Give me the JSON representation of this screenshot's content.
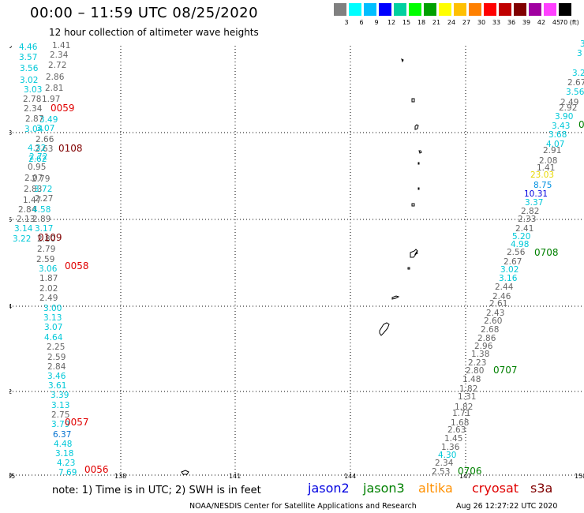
{
  "title": "00:00 – 11:59 UTC 08/25/2020",
  "subtitle": "12 hour collection of altimeter wave heights",
  "scale": {
    "colors": [
      "#808080",
      "#00ffff",
      "#00bfff",
      "#0000ff",
      "#00d0a0",
      "#00ff00",
      "#00a000",
      "#ffff00",
      "#ffc000",
      "#ff8000",
      "#ff0000",
      "#c00000",
      "#800000",
      "#a000a0",
      "#ff40ff",
      "#000000"
    ],
    "labels": [
      "3",
      "6",
      "9",
      "12",
      "15",
      "18",
      "21",
      "24",
      "27",
      "30",
      "33",
      "36",
      "39",
      "42",
      "45",
      "70 (ft)"
    ]
  },
  "axes": {
    "lat_labels": [
      "20",
      "18",
      "16",
      "14",
      "12",
      "10"
    ],
    "lon_labels": [
      "135",
      "138",
      "141",
      "144",
      "147",
      "150"
    ]
  },
  "swh_left": [
    {
      "v": "1.41",
      "c": "#666"
    },
    {
      "v": "2.34",
      "c": "#666"
    },
    {
      "v": "4.46",
      "c": "#00c8d8"
    },
    {
      "v": "3.57",
      "c": "#00c8d8"
    },
    {
      "v": "2.72",
      "c": "#666"
    },
    {
      "v": "3.56",
      "c": "#00c8d8"
    },
    {
      "v": "2.86",
      "c": "#666"
    },
    {
      "v": "3.02",
      "c": "#00c8d8"
    },
    {
      "v": "2.81",
      "c": "#666"
    },
    {
      "v": "3.03",
      "c": "#00c8d8"
    },
    {
      "v": "1.97",
      "c": "#666"
    },
    {
      "v": "2.78",
      "c": "#666"
    },
    {
      "v": "2.34",
      "c": "#666"
    },
    {
      "v": "3.49",
      "c": "#00c8d8"
    },
    {
      "v": "2.87",
      "c": "#666"
    },
    {
      "v": "3.07",
      "c": "#00c8d8"
    },
    {
      "v": "3.04",
      "c": "#00c8d8"
    },
    {
      "v": "2.66",
      "c": "#666"
    },
    {
      "v": "2.63",
      "c": "#666"
    },
    {
      "v": "4.32",
      "c": "#00c8d8"
    },
    {
      "v": "2.72",
      "c": "#00c8d8"
    },
    {
      "v": "2.62",
      "c": "#00c8d8"
    },
    {
      "v": "0.95",
      "c": "#666"
    },
    {
      "v": "2.79",
      "c": "#666"
    },
    {
      "v": "2.07",
      "c": "#666"
    },
    {
      "v": "2.83",
      "c": "#666"
    },
    {
      "v": "3.72",
      "c": "#00c8d8"
    },
    {
      "v": "1.47",
      "c": "#666"
    },
    {
      "v": "2.27",
      "c": "#666"
    },
    {
      "v": "2.84",
      "c": "#666"
    },
    {
      "v": "4.58",
      "c": "#00c8d8"
    },
    {
      "v": "2.13",
      "c": "#666"
    },
    {
      "v": "2.89",
      "c": "#666"
    },
    {
      "v": "3.14",
      "c": "#00c8d8"
    },
    {
      "v": "3.17",
      "c": "#00c8d8"
    },
    {
      "v": "3.22",
      "c": "#00c8d8"
    },
    {
      "v": "2.80",
      "c": "#666"
    },
    {
      "v": "2.79",
      "c": "#666"
    },
    {
      "v": "2.59",
      "c": "#666"
    },
    {
      "v": "3.06",
      "c": "#00c8d8"
    },
    {
      "v": "1.87",
      "c": "#666"
    },
    {
      "v": "2.02",
      "c": "#666"
    },
    {
      "v": "2.49",
      "c": "#666"
    },
    {
      "v": "3.00",
      "c": "#00c8d8"
    },
    {
      "v": "3.13",
      "c": "#00c8d8"
    },
    {
      "v": "3.07",
      "c": "#00c8d8"
    },
    {
      "v": "4.64",
      "c": "#00c8d8"
    },
    {
      "v": "2.25",
      "c": "#666"
    },
    {
      "v": "2.59",
      "c": "#666"
    },
    {
      "v": "2.84",
      "c": "#666"
    },
    {
      "v": "3.46",
      "c": "#00c8d8"
    },
    {
      "v": "3.61",
      "c": "#00c8d8"
    },
    {
      "v": "3.39",
      "c": "#00c8d8"
    },
    {
      "v": "3.13",
      "c": "#00c8d8"
    },
    {
      "v": "2.75",
      "c": "#666"
    },
    {
      "v": "3.79",
      "c": "#00c8d8"
    },
    {
      "v": "6.37",
      "c": "#0070d0"
    },
    {
      "v": "4.48",
      "c": "#00c8d8"
    },
    {
      "v": "3.18",
      "c": "#00c8d8"
    },
    {
      "v": "4.23",
      "c": "#00c8d8"
    },
    {
      "v": "7.69",
      "c": "#00c8d8"
    }
  ],
  "swh_right": [
    {
      "v": "3",
      "c": "#00c8d8"
    },
    {
      "v": "3",
      "c": "#00c8d8"
    },
    {
      "v": "3.2",
      "c": "#00c8d8"
    },
    {
      "v": "2.67",
      "c": "#666"
    },
    {
      "v": "3.56",
      "c": "#00c8d8"
    },
    {
      "v": "2.49",
      "c": "#666"
    },
    {
      "v": "2.92",
      "c": "#666"
    },
    {
      "v": "3.90",
      "c": "#00c8d8"
    },
    {
      "v": "3.43",
      "c": "#00c8d8"
    },
    {
      "v": "3.68",
      "c": "#00c8d8"
    },
    {
      "v": "4.07",
      "c": "#00c8d8"
    },
    {
      "v": "2.91",
      "c": "#666"
    },
    {
      "v": "2.08",
      "c": "#666"
    },
    {
      "v": "1.41",
      "c": "#666"
    },
    {
      "v": "23.03",
      "c": "#e8d800"
    },
    {
      "v": "8.75",
      "c": "#0090e0"
    },
    {
      "v": "10.31",
      "c": "#0000e0"
    },
    {
      "v": "3.37",
      "c": "#00c8d8"
    },
    {
      "v": "2.82",
      "c": "#666"
    },
    {
      "v": "2.33",
      "c": "#666"
    },
    {
      "v": "2.41",
      "c": "#666"
    },
    {
      "v": "5.20",
      "c": "#00c8d8"
    },
    {
      "v": "4.98",
      "c": "#00c8d8"
    },
    {
      "v": "2.56",
      "c": "#666"
    },
    {
      "v": "2.67",
      "c": "#666"
    },
    {
      "v": "3.02",
      "c": "#00c8d8"
    },
    {
      "v": "3.16",
      "c": "#00c8d8"
    },
    {
      "v": "2.44",
      "c": "#666"
    },
    {
      "v": "2.46",
      "c": "#666"
    },
    {
      "v": "2.61",
      "c": "#666"
    },
    {
      "v": "2.43",
      "c": "#666"
    },
    {
      "v": "2.60",
      "c": "#666"
    },
    {
      "v": "2.68",
      "c": "#666"
    },
    {
      "v": "2.86",
      "c": "#666"
    },
    {
      "v": "2.96",
      "c": "#666"
    },
    {
      "v": "1.38",
      "c": "#666"
    },
    {
      "v": "2.23",
      "c": "#666"
    },
    {
      "v": "2.80",
      "c": "#666"
    },
    {
      "v": "1.48",
      "c": "#666"
    },
    {
      "v": "1.82",
      "c": "#666"
    },
    {
      "v": "1.31",
      "c": "#666"
    },
    {
      "v": "1.82",
      "c": "#666"
    },
    {
      "v": "1.71",
      "c": "#666"
    },
    {
      "v": "1.68",
      "c": "#666"
    },
    {
      "v": "2.63",
      "c": "#666"
    },
    {
      "v": "1.45",
      "c": "#666"
    },
    {
      "v": "1.36",
      "c": "#666"
    },
    {
      "v": "4.30",
      "c": "#00c8d8"
    },
    {
      "v": "2.34",
      "c": "#666"
    },
    {
      "v": "2.53",
      "c": "#666"
    }
  ],
  "time_labels": [
    {
      "t": "0059",
      "c": "#e00000"
    },
    {
      "t": "0108",
      "c": "#800000"
    },
    {
      "t": "0109",
      "c": "#800000"
    },
    {
      "t": "0058",
      "c": "#e00000"
    },
    {
      "t": "0057",
      "c": "#e00000"
    },
    {
      "t": "0056",
      "c": "#e00000"
    },
    {
      "t": "0",
      "c": "#008000"
    },
    {
      "t": "0708",
      "c": "#008000"
    },
    {
      "t": "0707",
      "c": "#008000"
    },
    {
      "t": "0706",
      "c": "#008000"
    }
  ],
  "note": "note: 1) Time is in UTC; 2) SWH is in feet",
  "legend": [
    {
      "name": "jason2",
      "c": "#0000e0"
    },
    {
      "name": "jason3",
      "c": "#008000"
    },
    {
      "name": "altika",
      "c": "#ff9000"
    },
    {
      "name": "cryosat",
      "c": "#e00000"
    },
    {
      "name": "s3a",
      "c": "#800000"
    }
  ],
  "credit": "NOAA/NESDIS Center for Satellite Applications and Research",
  "timestamp": "Aug 26 12:27:22 UTC 2020"
}
